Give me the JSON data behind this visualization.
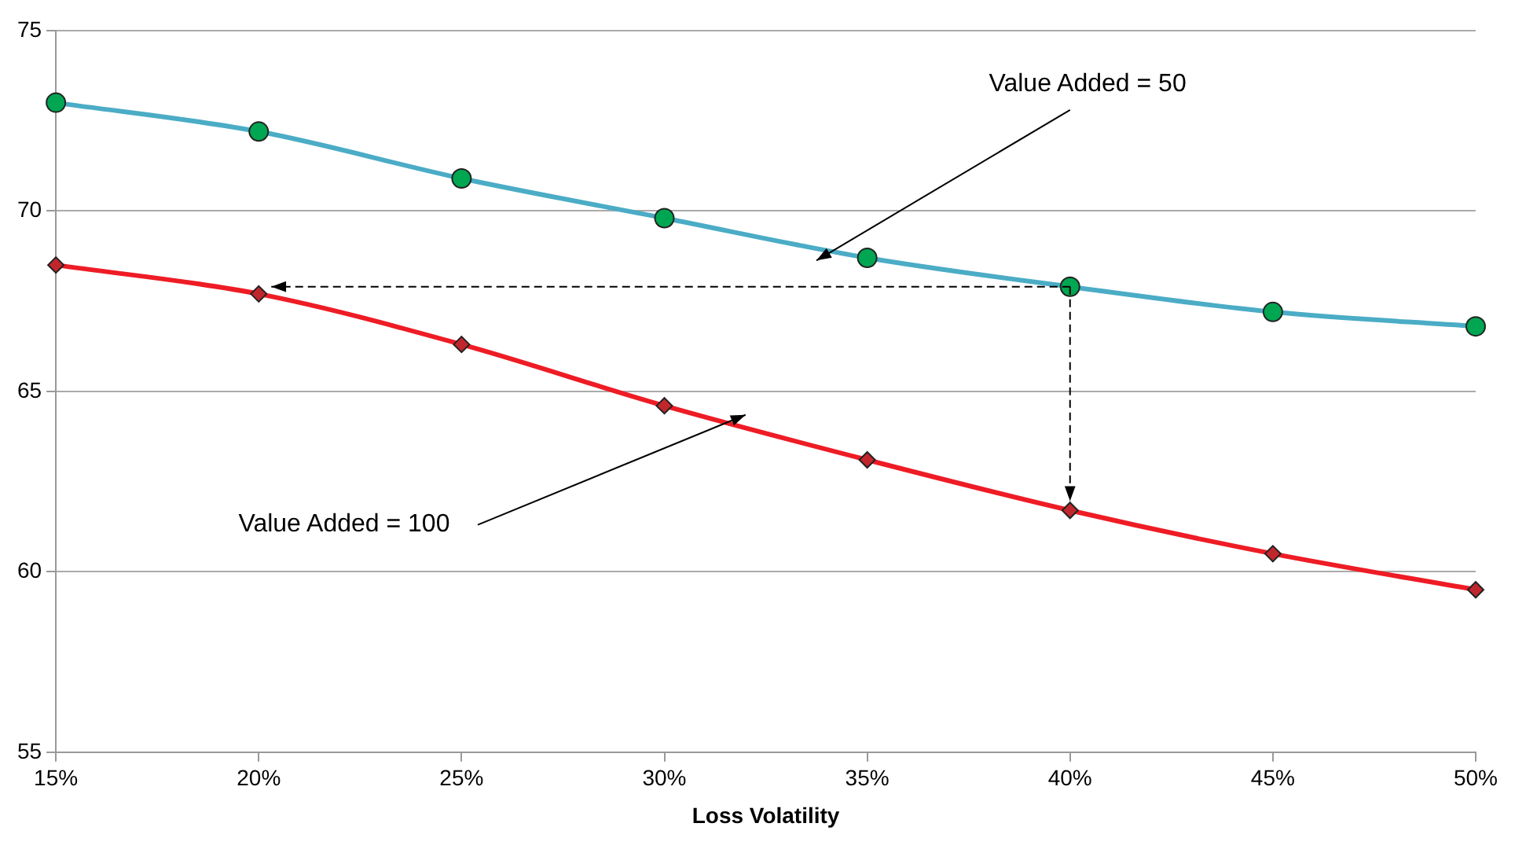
{
  "chart_data": {
    "type": "line",
    "xlabel": "Loss Volatility",
    "categories": [
      "15%",
      "20%",
      "25%",
      "30%",
      "35%",
      "40%",
      "45%",
      "50%"
    ],
    "series": [
      {
        "color": "#4bacc6",
        "values": [
          73.0,
          72.2,
          70.9,
          69.8,
          68.7,
          67.9,
          67.2,
          66.8
        ],
        "marker": "circle",
        "colors": [
          "#00a651",
          "#00a651",
          "#00a651",
          "#00a651",
          "#00a651",
          "#00a651",
          "#00a651",
          "#00a651"
        ]
      },
      {
        "color": "#ee1c25",
        "values": [
          68.5,
          67.7,
          66.3,
          64.6,
          63.1,
          61.7,
          60.5,
          59.5
        ],
        "marker": "diamond",
        "colors": [
          "#c0272d",
          "#c0272d",
          "#c0272d",
          "#c0272d",
          "#c0272d",
          "#c0272d",
          "#c0272d",
          "#c0272d"
        ]
      }
    ],
    "ylim": [
      55,
      75
    ],
    "yticks": [
      55,
      60,
      65,
      70,
      75
    ],
    "grid": "y",
    "legend": false,
    "annotations": [
      "Value Added = 50",
      "Value Added = 100"
    ]
  }
}
